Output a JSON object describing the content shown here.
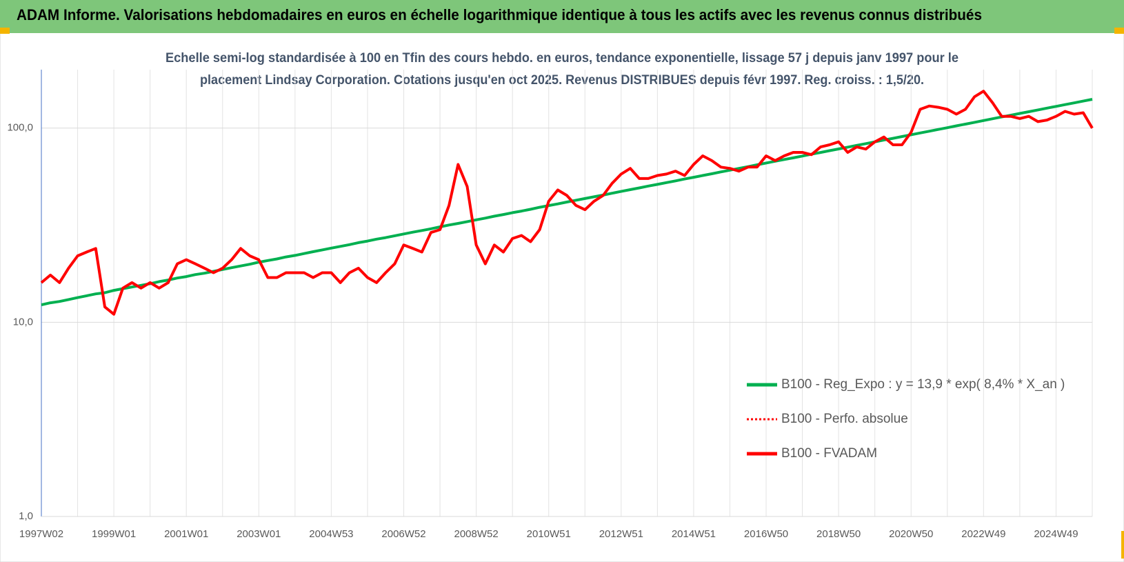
{
  "header": {
    "title": "ADAM Informe. Valorisations hebdomadaires en euros en échelle logarithmique identique à tous les actifs avec les revenus connus distribués"
  },
  "chart_data": {
    "type": "line",
    "title": [
      "Echelle semi-log standardisée à 100 en Tfin des cours hebdo. en euros, tendance exponentielle, lissage 57 j depuis janv 1997 pour le",
      "placement Lindsay Corporation. Cotations jusqu'en oct 2025. Revenus DISTRIBUES depuis févr 1997. Reg. croiss. : 1,5/20."
    ],
    "categories": [
      "1997W02",
      null,
      null,
      null,
      null,
      null,
      null,
      null,
      "1999W01",
      null,
      null,
      null,
      null,
      null,
      null,
      null,
      "2001W01",
      null,
      null,
      null,
      null,
      null,
      null,
      null,
      "2003W01",
      null,
      null,
      null,
      null,
      null,
      null,
      null,
      "2004W53",
      null,
      null,
      null,
      null,
      null,
      null,
      null,
      "2006W52",
      null,
      null,
      null,
      null,
      null,
      null,
      null,
      "2008W52",
      null,
      null,
      null,
      null,
      null,
      null,
      null,
      "2010W51",
      null,
      null,
      null,
      null,
      null,
      null,
      null,
      "2012W51",
      null,
      null,
      null,
      null,
      null,
      null,
      null,
      "2014W51",
      null,
      null,
      null,
      null,
      null,
      null,
      null,
      "2016W50",
      null,
      null,
      null,
      null,
      null,
      null,
      null,
      "2018W50",
      null,
      null,
      null,
      null,
      null,
      null,
      null,
      "2020W50",
      null,
      null,
      null,
      null,
      null,
      null,
      null,
      "2022W49",
      null,
      null,
      null,
      null,
      null,
      null,
      null,
      "2024W49",
      null,
      null,
      null,
      null
    ],
    "series": [
      {
        "name": "B100 - Reg_Expo : y = 13,9 * exp( 8,4% *  X_an )",
        "color": "#00b050",
        "style": "solid",
        "values": [
          12.3,
          12.6,
          12.8,
          13.1,
          13.4,
          13.7,
          14.0,
          14.2,
          14.6,
          14.9,
          15.2,
          15.5,
          15.8,
          16.2,
          16.5,
          16.9,
          17.2,
          17.6,
          17.9,
          18.3,
          18.7,
          19.1,
          19.5,
          19.9,
          20.4,
          20.8,
          21.2,
          21.7,
          22.1,
          22.6,
          23.1,
          23.6,
          24.1,
          24.6,
          25.1,
          25.7,
          26.2,
          26.8,
          27.3,
          27.9,
          28.5,
          29.1,
          29.7,
          30.3,
          31.0,
          31.7,
          32.3,
          33.0,
          33.7,
          34.4,
          35.2,
          35.9,
          36.7,
          37.4,
          38.2,
          39.1,
          39.9,
          40.7,
          41.6,
          42.5,
          43.4,
          44.3,
          45.2,
          46.2,
          47.2,
          48.2,
          49.2,
          50.3,
          51.3,
          52.4,
          53.5,
          54.7,
          55.8,
          57.0,
          58.2,
          59.5,
          60.7,
          62.0,
          63.3,
          64.7,
          66.1,
          67.5,
          68.9,
          70.3,
          71.8,
          73.4,
          74.9,
          76.5,
          78.1,
          79.8,
          81.5,
          83.2,
          85.0,
          86.8,
          88.6,
          90.5,
          92.4,
          94.4,
          96.4,
          98.4,
          100.5,
          102.7,
          104.8,
          107.1,
          109.4,
          111.7,
          114.1,
          116.5,
          119.0,
          121.5,
          124.1,
          126.7,
          129.4,
          132.1,
          134.9,
          137.8,
          140.7
        ]
      },
      {
        "name": "B100 - Perfo. absolue",
        "color": "#ff0000",
        "style": "dotted",
        "values": [
          16,
          17.5,
          16,
          19,
          22,
          23,
          24,
          12,
          11,
          15,
          16,
          15,
          16,
          15,
          16,
          20,
          21,
          20,
          19,
          18,
          19,
          21,
          24,
          22,
          21,
          17,
          17,
          18,
          18,
          18,
          17,
          18,
          18,
          16,
          18,
          19,
          17,
          16,
          18,
          20,
          25,
          24,
          23,
          29,
          30,
          40,
          65,
          50,
          25,
          20,
          25,
          23,
          27,
          28,
          26,
          30,
          42,
          48,
          45,
          40,
          38,
          42,
          45,
          52,
          58,
          62,
          55,
          55,
          57,
          58,
          60,
          57,
          65,
          72,
          68,
          63,
          62,
          60,
          63,
          63,
          72,
          68,
          72,
          75,
          75,
          73,
          80,
          82,
          85,
          75,
          80,
          78,
          85,
          90,
          82,
          82,
          95,
          125,
          130,
          128,
          125,
          118,
          125,
          145,
          155,
          135,
          115,
          115,
          112,
          115,
          108,
          110,
          115,
          122,
          118,
          120,
          100
        ]
      },
      {
        "name": "B100 - FVADAM",
        "color": "#ff0000",
        "style": "solid",
        "values": [
          16,
          17.5,
          16,
          19,
          22,
          23,
          24,
          12,
          11,
          15,
          16,
          15,
          16,
          15,
          16,
          20,
          21,
          20,
          19,
          18,
          19,
          21,
          24,
          22,
          21,
          17,
          17,
          18,
          18,
          18,
          17,
          18,
          18,
          16,
          18,
          19,
          17,
          16,
          18,
          20,
          25,
          24,
          23,
          29,
          30,
          40,
          65,
          50,
          25,
          20,
          25,
          23,
          27,
          28,
          26,
          30,
          42,
          48,
          45,
          40,
          38,
          42,
          45,
          52,
          58,
          62,
          55,
          55,
          57,
          58,
          60,
          57,
          65,
          72,
          68,
          63,
          62,
          60,
          63,
          63,
          72,
          68,
          72,
          75,
          75,
          73,
          80,
          82,
          85,
          75,
          80,
          78,
          85,
          90,
          82,
          82,
          95,
          125,
          130,
          128,
          125,
          118,
          125,
          145,
          155,
          135,
          115,
          115,
          112,
          115,
          108,
          110,
          115,
          122,
          118,
          120,
          100
        ]
      }
    ],
    "ylim": [
      1,
      200
    ],
    "log_y": true,
    "yticks": [
      {
        "value": 1,
        "label": "1,0"
      },
      {
        "value": 10,
        "label": "10,0"
      },
      {
        "value": 100,
        "label": "100,0"
      }
    ],
    "grid": true,
    "legend": "lower right"
  }
}
